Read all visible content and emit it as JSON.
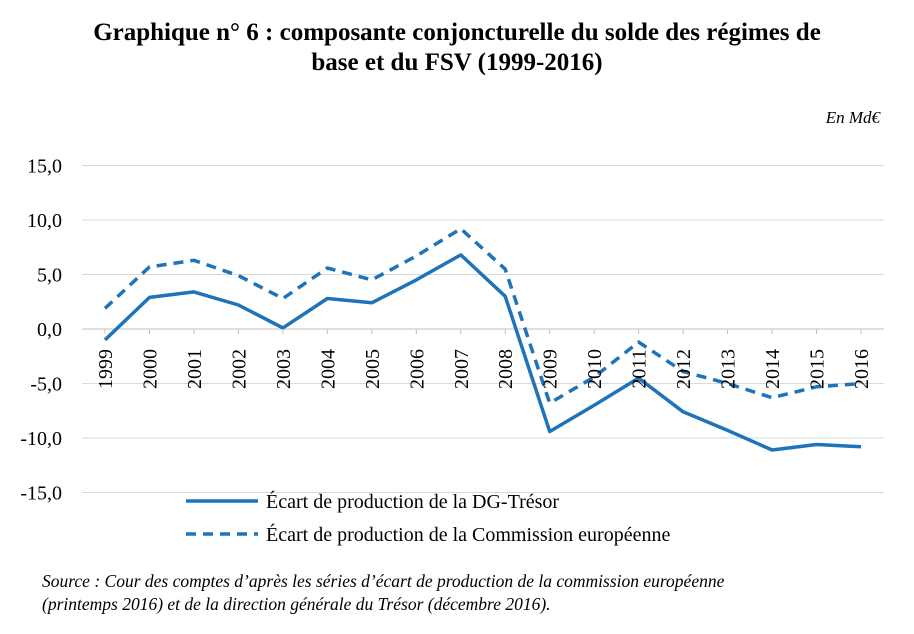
{
  "header": {
    "title_line1": "Graphique n° 6 : composante conjoncturelle du solde des régimes de",
    "title_line2": "base et du FSV (1999-2016)"
  },
  "unit_label": "En Md€",
  "source_note_line1": "Source : Cour des comptes d’après les séries d’écart de production de la commission européenne",
  "source_note_line2": "(printemps 2016) et de la direction générale du Trésor (décembre 2016).",
  "colors": {
    "series": "#1f73b8",
    "grid": "#d9d9d9",
    "axis": "#bfbfbf"
  },
  "chart_data": {
    "type": "line",
    "title": "Graphique n° 6 : composante conjoncturelle du solde des régimes de base et du FSV (1999-2016)",
    "xlabel": "",
    "ylabel": "En Md€",
    "x": [
      "1999",
      "2000",
      "2001",
      "2002",
      "2003",
      "2004",
      "2005",
      "2006",
      "2007",
      "2008",
      "2009",
      "2010",
      "2011",
      "2012",
      "2013",
      "2014",
      "2015",
      "2016"
    ],
    "yticks": [
      "15,0",
      "10,0",
      "5,0",
      "0,0",
      "-5,0",
      "-10,0",
      "-15,0"
    ],
    "ylim": [
      -15,
      15
    ],
    "grid": true,
    "legend_position": "bottom",
    "series": [
      {
        "name": "Écart de production de la DG-Trésor",
        "style": "solid",
        "values": [
          -1.0,
          2.9,
          3.4,
          2.2,
          0.1,
          2.8,
          2.4,
          4.5,
          6.8,
          3.0,
          -9.4,
          -7.0,
          -4.5,
          -7.6,
          -9.3,
          -11.1,
          -10.6,
          -10.8
        ]
      },
      {
        "name": "Écart de production de la Commission européenne",
        "style": "dashed",
        "values": [
          1.9,
          5.7,
          6.3,
          4.9,
          2.8,
          5.6,
          4.5,
          6.7,
          9.2,
          5.5,
          -6.8,
          -4.4,
          -1.2,
          -3.9,
          -5.0,
          -6.3,
          -5.3,
          -5.0
        ]
      }
    ]
  }
}
